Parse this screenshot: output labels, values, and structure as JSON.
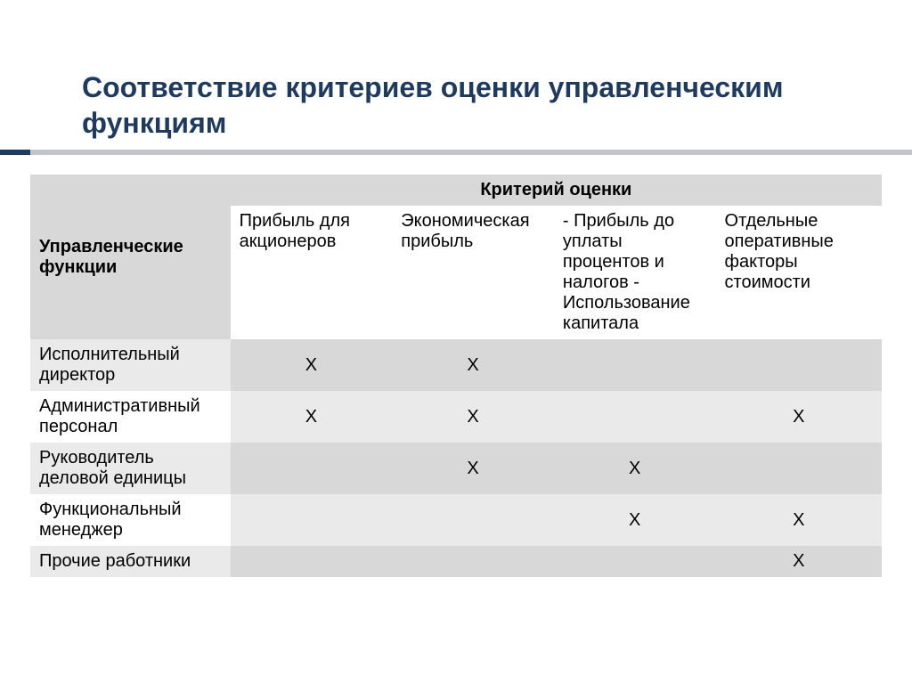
{
  "title": "Соответствие критериев оценки управленческим функциям",
  "table": {
    "type": "table",
    "row_header_title": "Управленческие функции",
    "criteria_group_title": "Критерий оценки",
    "columns": [
      "Прибыль для акционеров",
      "Экономическая прибыль",
      "- Прибыль до уплаты процентов и налогов\n- Использование капитала",
      "Отдельные оперативные факторы стоимости"
    ],
    "rows": [
      {
        "label": "Исполнительный директор",
        "cells": [
          "Х",
          "Х",
          "",
          ""
        ]
      },
      {
        "label": "Административный персонал",
        "cells": [
          "Х",
          "Х",
          "",
          "Х"
        ]
      },
      {
        "label": "Руководитель деловой единицы",
        "cells": [
          "",
          "Х",
          "Х",
          ""
        ]
      },
      {
        "label": "Функциональный менеджер",
        "cells": [
          "",
          "",
          "Х",
          "Х"
        ]
      },
      {
        "label": "Прочие работники",
        "cells": [
          "",
          "",
          "",
          "Х"
        ]
      }
    ],
    "colors": {
      "title_text": "#1f3a5f",
      "rule_accent": "#1f3a5f",
      "rule_main": "#c2c6cc",
      "header_bg": "#d8d8d8",
      "band_a_label_bg": "#eaeaea",
      "band_a_cell_bg": "#d8d8d8",
      "band_b_label_bg": "#ffffff",
      "band_b_cell_bg": "#eaeaea",
      "text": "#000000",
      "background": "#ffffff"
    },
    "typography": {
      "title_fontsize_pt": 24,
      "body_fontsize_pt": 15,
      "font_family": "Arial"
    }
  }
}
